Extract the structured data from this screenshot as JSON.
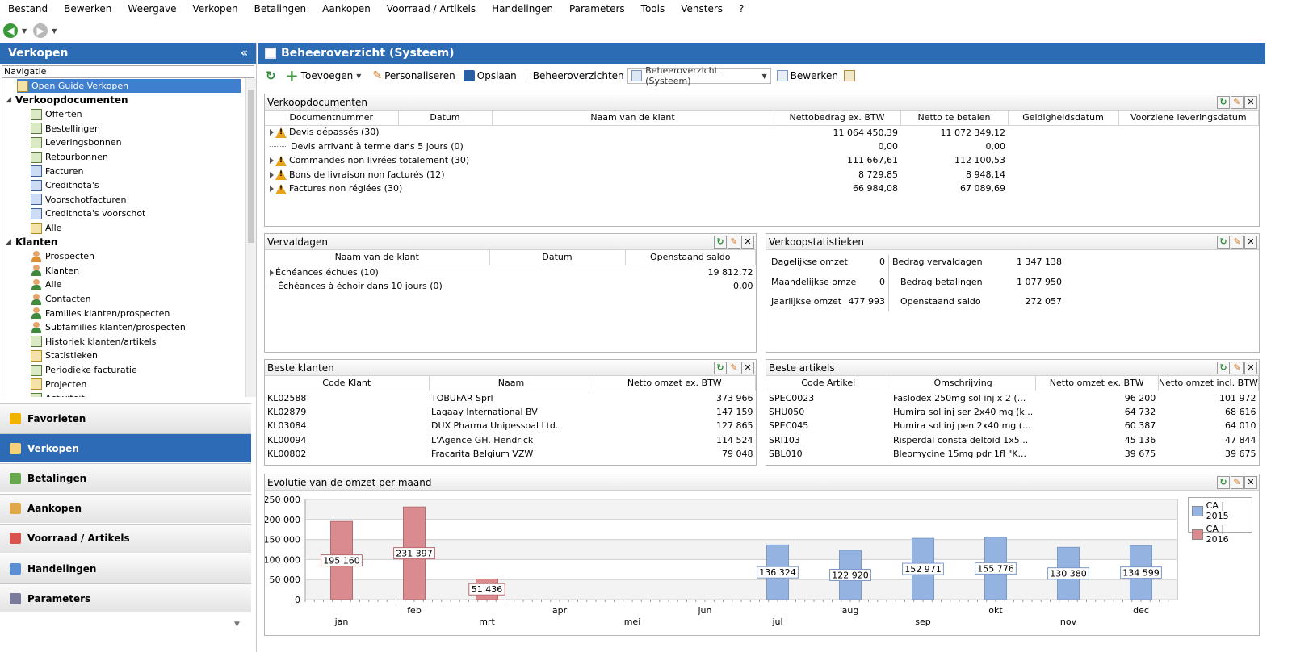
{
  "menu": [
    "Bestand",
    "Bewerken",
    "Weergave",
    "Verkopen",
    "Betalingen",
    "Aankopen",
    "Voorraad / Artikels",
    "Handelingen",
    "Parameters",
    "Tools",
    "Vensters",
    "?"
  ],
  "left": {
    "title": "Verkopen",
    "collapse_glyph": "«",
    "nav_label": "Navigatie",
    "tree": [
      {
        "label": "Open Guide Verkopen",
        "level": 1,
        "icon": "guide-icon",
        "selected": true
      },
      {
        "label": "Verkoopdocumenten",
        "level": 0,
        "group": true
      },
      {
        "label": "Offerten",
        "level": 2,
        "icon": "document-icon"
      },
      {
        "label": "Bestellingen",
        "level": 2,
        "icon": "document-icon"
      },
      {
        "label": "Leveringsbonnen",
        "level": 2,
        "icon": "document-icon"
      },
      {
        "label": "Retourbonnen",
        "level": 2,
        "icon": "document-icon"
      },
      {
        "label": "Facturen",
        "level": 2,
        "icon": "invoice-icon"
      },
      {
        "label": "Creditnota's",
        "level": 2,
        "icon": "invoice-icon"
      },
      {
        "label": "Voorschotfacturen",
        "level": 2,
        "icon": "invoice-icon"
      },
      {
        "label": "Creditnota's voorschot",
        "level": 2,
        "icon": "invoice-icon"
      },
      {
        "label": "Alle",
        "level": 2,
        "icon": "documents-icon"
      },
      {
        "label": "Klanten",
        "level": 0,
        "group": true
      },
      {
        "label": "Prospecten",
        "level": 2,
        "icon": "person-icon"
      },
      {
        "label": "Klanten",
        "level": 2,
        "icon": "person-icon"
      },
      {
        "label": "Alle",
        "level": 2,
        "icon": "person-icon"
      },
      {
        "label": "Contacten",
        "level": 2,
        "icon": "contact-icon"
      },
      {
        "label": "Families klanten/prospecten",
        "level": 2,
        "icon": "people-icon"
      },
      {
        "label": "Subfamilies klanten/prospecten",
        "level": 2,
        "icon": "people-icon"
      },
      {
        "label": "Historiek klanten/artikels",
        "level": 2,
        "icon": "history-icon"
      },
      {
        "label": "Statistieken",
        "level": 2,
        "icon": "stats-icon"
      },
      {
        "label": "Periodieke facturatie",
        "level": 2,
        "icon": "periodic-icon"
      },
      {
        "label": "Projecten",
        "level": 2,
        "icon": "folder-icon"
      },
      {
        "label": "Activiteit",
        "level": 2,
        "icon": "activity-icon"
      }
    ],
    "nav_buttons": [
      {
        "label": "Favorieten",
        "icon": "star-icon",
        "color": "#f0b400",
        "active": false
      },
      {
        "label": "Verkopen",
        "icon": "sales-icon",
        "color": "#f5d27a",
        "active": true
      },
      {
        "label": "Betalingen",
        "icon": "money-icon",
        "color": "#6aa84f",
        "active": false
      },
      {
        "label": "Aankopen",
        "icon": "purchase-icon",
        "color": "#e0a84a",
        "active": false
      },
      {
        "label": "Voorraad / Artikels",
        "icon": "stock-icon",
        "color": "#d9534f",
        "active": false
      },
      {
        "label": "Handelingen",
        "icon": "actions-icon",
        "color": "#5b8fd1",
        "active": false
      },
      {
        "label": "Parameters",
        "icon": "gear-icon",
        "color": "#7a7a9a",
        "active": false
      }
    ]
  },
  "header": {
    "title": "Beheeroverzicht (Systeem)"
  },
  "toolbar": {
    "add": "Toevoegen",
    "personalize": "Personaliseren",
    "save": "Opslaan",
    "overviews": "Beheeroverzichten",
    "combo_value": "Beheeroverzicht (Systeem)",
    "edit": "Bewerken"
  },
  "docs": {
    "title": "Verkoopdocumenten",
    "columns": [
      "Documentnummer",
      "Datum",
      "Naam van de klant",
      "Nettobedrag ex. BTW",
      "Netto te betalen",
      "Geldigheidsdatum",
      "Voorziene leveringsdatum"
    ],
    "rows": [
      {
        "label": "Devis dépassés (30)",
        "warn": true,
        "net": "11 064 450,39",
        "topay": "11 072 349,12"
      },
      {
        "label": "Devis arrivant à terme dans 5 jours (0)",
        "warn": false,
        "net": "0,00",
        "topay": "0,00"
      },
      {
        "label": "Commandes non livrées totalement (30)",
        "warn": true,
        "net": "111 667,61",
        "topay": "112 100,53"
      },
      {
        "label": "Bons de livraison non facturés (12)",
        "warn": true,
        "net": "8 729,85",
        "topay": "8 948,14"
      },
      {
        "label": "Factures non réglées (30)",
        "warn": true,
        "net": "66 984,08",
        "topay": "67 089,69"
      }
    ]
  },
  "overdue": {
    "title": "Vervaldagen",
    "columns": [
      "Naam van de klant",
      "Datum",
      "Openstaand saldo"
    ],
    "rows": [
      {
        "label": "Échéances échues (10)",
        "amount": "19 812,72"
      },
      {
        "label": "Échéances à échoir dans 10 jours (0)",
        "amount": "0,00"
      }
    ]
  },
  "stats": {
    "title": "Verkoopstatistieken",
    "left": [
      {
        "label": "Dagelijkse omzet",
        "value": "0"
      },
      {
        "label": "Maandelijkse omze",
        "value": "0"
      },
      {
        "label": "Jaarlijkse omzet",
        "value": "477 993"
      }
    ],
    "right": [
      {
        "label": "Bedrag vervaldagen",
        "value": "1 347 138"
      },
      {
        "label": "Bedrag betalingen",
        "value": "1 077 950"
      },
      {
        "label": "Openstaand saldo",
        "value": "272 057"
      }
    ]
  },
  "customers": {
    "title": "Beste klanten",
    "columns": [
      "Code Klant",
      "Naam",
      "Netto omzet ex. BTW"
    ],
    "rows": [
      [
        "KL02588",
        "TOBUFAR Sprl",
        "373 966"
      ],
      [
        "KL02879",
        "Lagaay International BV",
        "147 159"
      ],
      [
        "KL03084",
        "DUX Pharma Unipessoal Ltd.",
        "127 865"
      ],
      [
        "KL00094",
        "L'Agence GH. Hendrick",
        "114 524"
      ],
      [
        "KL00802",
        "Fracarita Belgium VZW",
        "79 048"
      ]
    ]
  },
  "articles": {
    "title": "Beste artikels",
    "columns": [
      "Code Artikel",
      "Omschrijving",
      "Netto omzet ex. BTW",
      "Netto omzet incl. BTW"
    ],
    "rows": [
      [
        "SPEC0023",
        "Faslodex 250mg sol inj x 2 (...",
        "96 200",
        "101 972"
      ],
      [
        "SHU050",
        "Humira sol inj ser 2x40 mg (k...",
        "64 732",
        "68 616"
      ],
      [
        "SPEC045",
        "Humira sol inj pen 2x40 mg (...",
        "60 387",
        "64 010"
      ],
      [
        "SRI103",
        "Risperdal consta deltoid 1x5...",
        "45 136",
        "47 844"
      ],
      [
        "SBL010",
        "Bleomycine 15mg pdr  1fl \"K...",
        "39 675",
        "39 675"
      ]
    ]
  },
  "chart_data": {
    "type": "bar",
    "title": "Evolutie van de omzet per maand",
    "categories": [
      "jan",
      "feb",
      "mrt",
      "apr",
      "mei",
      "jun",
      "jul",
      "aug",
      "sep",
      "okt",
      "nov",
      "dec"
    ],
    "series": [
      {
        "name": "CA | 2015",
        "color": "#94b3e0",
        "values": [
          null,
          null,
          null,
          null,
          null,
          null,
          136324,
          122920,
          152971,
          155776,
          130380,
          134599
        ]
      },
      {
        "name": "CA | 2016",
        "color": "#d98b8f",
        "values": [
          195160,
          231397,
          51436,
          null,
          null,
          null,
          null,
          null,
          null,
          null,
          null,
          null
        ]
      }
    ],
    "data_labels": [
      "195 160",
      "231 397",
      "51 436",
      "",
      "",
      "",
      "136 324",
      "122 920",
      "152 971",
      "155 776",
      "130 380",
      "134 599"
    ],
    "ylim": [
      0,
      250000
    ],
    "yticks": [
      "0",
      "50 000",
      "100 000",
      "150 000",
      "200 000",
      "250 000"
    ],
    "grid": true,
    "legend": "top-right"
  }
}
